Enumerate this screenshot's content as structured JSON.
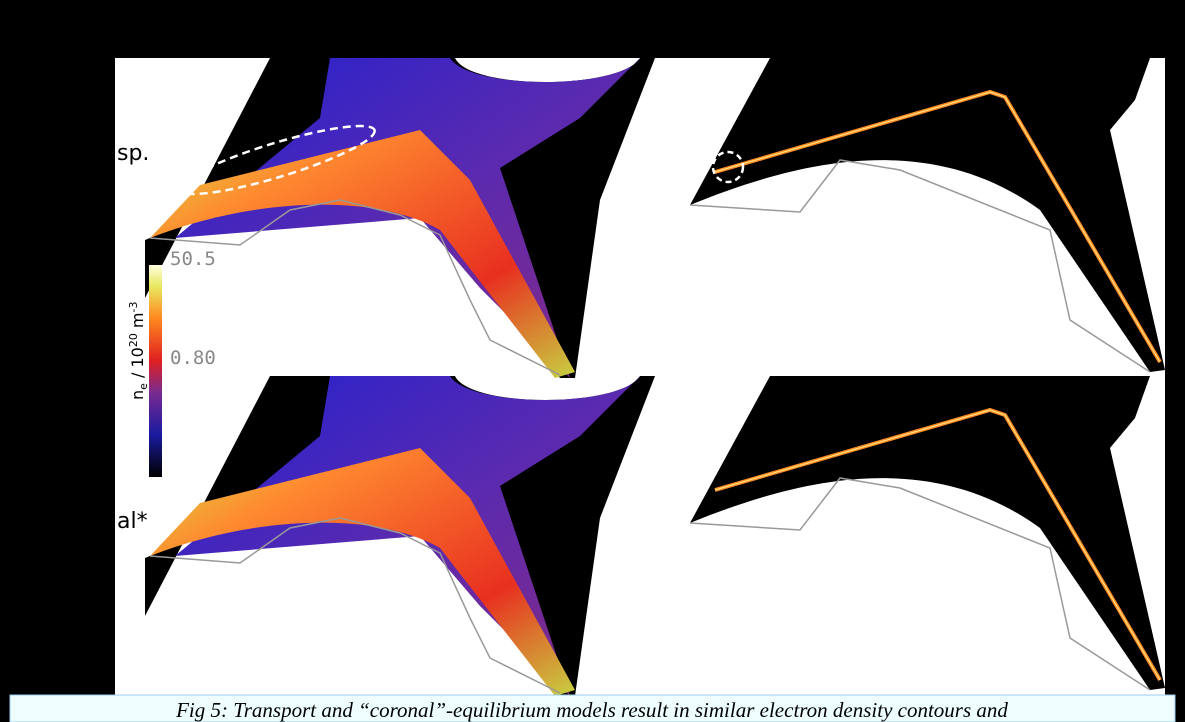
{
  "figure": {
    "row_labels": [
      "sp.",
      "al*"
    ],
    "colorbar": {
      "max_label": "50.5",
      "mid_label": "0.80",
      "label_parts": [
        "n",
        "e",
        " / 10",
        "20",
        " m",
        "-3"
      ]
    },
    "caption": "Fig 5: Transport and “coronal”-equilibrium models result in similar electron density contours and"
  }
}
